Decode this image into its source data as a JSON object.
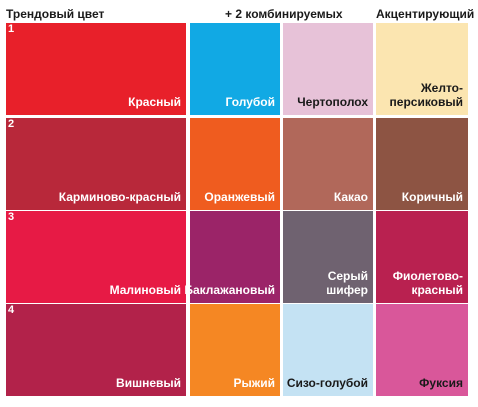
{
  "headers": {
    "trend": "Трендовый цвет",
    "combined": "+ 2 комбинируемых",
    "accent": "Акцентирующий"
  },
  "rows": [
    {
      "number": "1",
      "cells": [
        {
          "label": "Красный",
          "color": "#e8202a",
          "text_color": "#ffffff"
        },
        {
          "label": "Голубой",
          "color": "#11a9e4",
          "text_color": "#ffffff"
        },
        {
          "label": "Чертополох",
          "color": "#e7c2d8",
          "text_color": "#1a1a1a"
        },
        {
          "label": "Желто-\nперсиковый",
          "color": "#fbe5b0",
          "text_color": "#1a1a1a"
        }
      ]
    },
    {
      "number": "2",
      "cells": [
        {
          "label": "Карминово-красный",
          "color": "#b8283a",
          "text_color": "#ffffff"
        },
        {
          "label": "Оранжевый",
          "color": "#ef5c1f",
          "text_color": "#ffffff"
        },
        {
          "label": "Какао",
          "color": "#b1685a",
          "text_color": "#ffffff"
        },
        {
          "label": "Коричный",
          "color": "#8d5443",
          "text_color": "#ffffff"
        }
      ]
    },
    {
      "number": "3",
      "cells": [
        {
          "label": "Малиновый",
          "color": "#e71a45",
          "text_color": "#ffffff"
        },
        {
          "label": "Баклажановый",
          "color": "#9b2468",
          "text_color": "#ffffff"
        },
        {
          "label": "Серый шифер",
          "color": "#6f6270",
          "text_color": "#ffffff"
        },
        {
          "label": "Фиолетово-\nкрасный",
          "color": "#b92150",
          "text_color": "#ffffff"
        }
      ]
    },
    {
      "number": "4",
      "cells": [
        {
          "label": "Вишневый",
          "color": "#b2224a",
          "text_color": "#ffffff"
        },
        {
          "label": "Рыжий",
          "color": "#f58723",
          "text_color": "#ffffff"
        },
        {
          "label": "Сизо-голубой",
          "color": "#c4e2f3",
          "text_color": "#1a1a1a"
        },
        {
          "label": "Фуксия",
          "color": "#d9579a",
          "text_color": "#1a1a1a"
        }
      ]
    }
  ]
}
